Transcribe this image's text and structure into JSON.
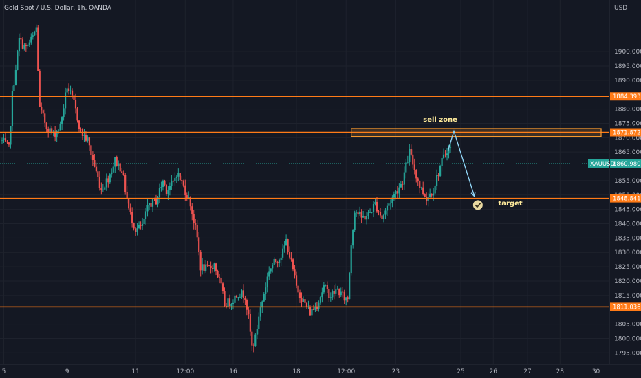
{
  "chart_data": {
    "type": "candlestick",
    "title": "Gold Spot / U.S. Dollar, 1h, OANDA",
    "currency": "USD",
    "symbol": "XAUUSD",
    "current_price": 1860.98,
    "ylim": [
      1791,
      1918
    ],
    "y_ticks": [
      "1900.000",
      "1895.000",
      "1890.000",
      "1880.000",
      "1875.000",
      "1870.000",
      "1865.000",
      "1855.000",
      "1850.000",
      "1845.000",
      "1840.000",
      "1835.000",
      "1830.000",
      "1825.000",
      "1820.000",
      "1815.000",
      "1805.000",
      "1800.000",
      "1795.000"
    ],
    "x_ticks": [
      {
        "label": "5",
        "x": 0.5
      },
      {
        "label": "9",
        "x": 19
      },
      {
        "label": "11",
        "x": 39
      },
      {
        "label": "12:00",
        "x": 53.5
      },
      {
        "label": "16",
        "x": 67.5
      },
      {
        "label": "18",
        "x": 86
      },
      {
        "label": "12:00",
        "x": 100.5
      },
      {
        "label": "23",
        "x": 115
      },
      {
        "label": "25",
        "x": 134
      },
      {
        "label": "26",
        "x": 143.5
      },
      {
        "label": "27",
        "x": 153.5
      },
      {
        "label": "28",
        "x": 163
      },
      {
        "label": "30",
        "x": 173.5
      }
    ],
    "levels": [
      {
        "name": "resistance-1884",
        "price": 1884.393,
        "label": "1884.393",
        "color": "#ff7b17"
      },
      {
        "name": "resistance-1871",
        "price": 1871.872,
        "label": "1871.872",
        "color": "#ff7b17"
      },
      {
        "name": "support-1848",
        "price": 1848.841,
        "label": "1848.841",
        "color": "#ff7b17"
      },
      {
        "name": "support-1811",
        "price": 1811.036,
        "label": "1811.036",
        "color": "#ff7b17"
      }
    ],
    "sell_zone": {
      "x_start": 102,
      "x_end": 175,
      "price_top": 1873.2,
      "price_bottom": 1870.4,
      "color": "#ff9d2e"
    },
    "annotations": [
      {
        "text": "sell zone",
        "x": 128,
        "price": 1875.6
      },
      {
        "text": "target",
        "x": 148.5,
        "price": 1846.3
      }
    ],
    "projection": [
      {
        "x": 132,
        "price": 1872.3
      },
      {
        "x": 138,
        "price": 1849.5
      }
    ],
    "target_marker": {
      "x": 139,
      "price": 1846.5,
      "color": "#e8d8a0"
    },
    "anchors": [
      [
        0,
        1869
      ],
      [
        2,
        1866
      ],
      [
        3,
        1885
      ],
      [
        5,
        1904
      ],
      [
        7,
        1901
      ],
      [
        9,
        1905
      ],
      [
        10,
        1908
      ],
      [
        11,
        1880
      ],
      [
        13,
        1874
      ],
      [
        15,
        1871
      ],
      [
        17,
        1874
      ],
      [
        19,
        1888
      ],
      [
        21,
        1882
      ],
      [
        23,
        1872
      ],
      [
        25,
        1869
      ],
      [
        27,
        1860
      ],
      [
        29,
        1852
      ],
      [
        31,
        1856
      ],
      [
        33,
        1862
      ],
      [
        35,
        1859
      ],
      [
        37,
        1845
      ],
      [
        39,
        1838
      ],
      [
        41,
        1839
      ],
      [
        43,
        1847
      ],
      [
        45,
        1848
      ],
      [
        47,
        1855
      ],
      [
        48,
        1852
      ],
      [
        50,
        1854
      ],
      [
        51,
        1858
      ],
      [
        53,
        1853
      ],
      [
        55,
        1847
      ],
      [
        57,
        1835
      ],
      [
        58,
        1825
      ],
      [
        60,
        1824
      ],
      [
        62,
        1826
      ],
      [
        64,
        1818
      ],
      [
        65,
        1812
      ],
      [
        67,
        1813
      ],
      [
        69,
        1816
      ],
      [
        71,
        1815
      ],
      [
        72,
        1807
      ],
      [
        73,
        1797
      ],
      [
        74,
        1800
      ],
      [
        75,
        1808
      ],
      [
        76,
        1813
      ],
      [
        78,
        1824
      ],
      [
        80,
        1827
      ],
      [
        82,
        1830
      ],
      [
        83,
        1834
      ],
      [
        84,
        1829
      ],
      [
        86,
        1818
      ],
      [
        88,
        1813
      ],
      [
        90,
        1809
      ],
      [
        92,
        1812
      ],
      [
        94,
        1818
      ],
      [
        96,
        1815
      ],
      [
        98,
        1817
      ],
      [
        100,
        1814
      ],
      [
        101,
        1814
      ],
      [
        102,
        1833
      ],
      [
        103,
        1845
      ],
      [
        105,
        1842
      ],
      [
        107,
        1843
      ],
      [
        109,
        1847
      ],
      [
        111,
        1842
      ],
      [
        113,
        1847
      ],
      [
        115,
        1851
      ],
      [
        117,
        1855
      ],
      [
        119,
        1865
      ],
      [
        120,
        1861
      ],
      [
        122,
        1853
      ],
      [
        124,
        1849
      ],
      [
        126,
        1852
      ],
      [
        128,
        1860
      ],
      [
        130,
        1866
      ],
      [
        131,
        1866
      ]
    ],
    "x_max": 176
  }
}
